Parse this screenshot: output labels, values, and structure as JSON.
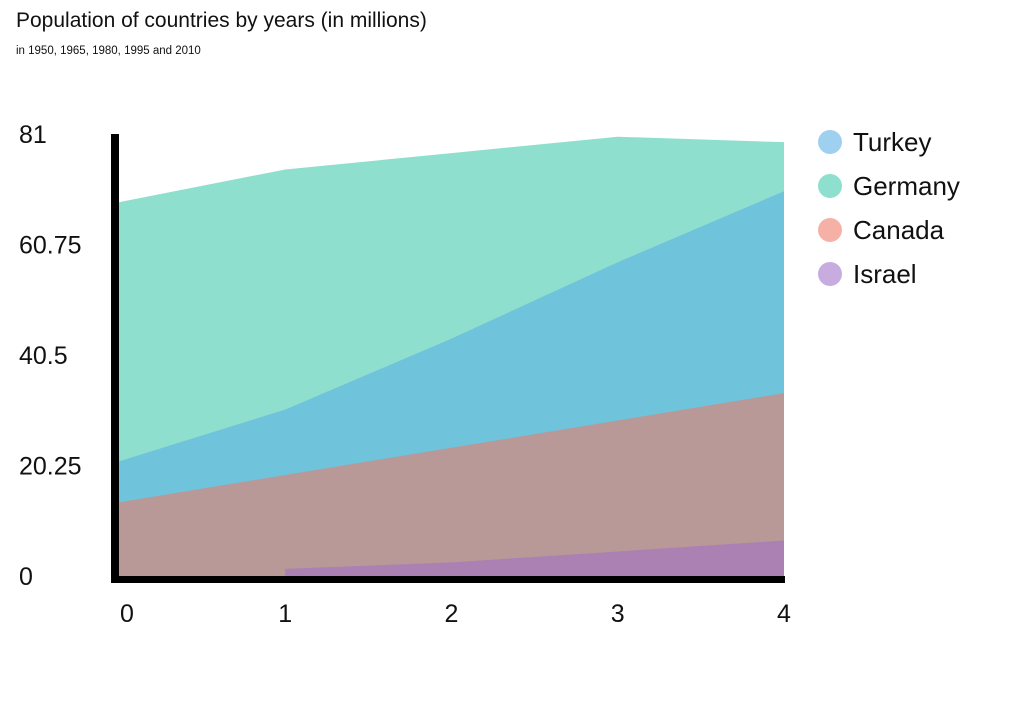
{
  "chart_data": {
    "type": "area",
    "title": "Population of countries by years (in millions)",
    "subtitle": "in 1950, 1965, 1980, 1995 and 2010",
    "x": [
      0,
      1,
      2,
      3,
      4
    ],
    "ylim": [
      0,
      81
    ],
    "yticks": [
      "0",
      "20.25",
      "40.5",
      "60.75",
      "81"
    ],
    "xticks": [
      "0",
      "1",
      "2",
      "3",
      "4"
    ],
    "legend_position": "right",
    "series": [
      {
        "name": "Turkey",
        "color": "#5aaee6",
        "values": [
          21,
          30.5,
          43.5,
          57.5,
          70.5
        ]
      },
      {
        "name": "Germany",
        "color": "#3cc8aa",
        "values": [
          68.5,
          74.5,
          77.5,
          80.5,
          79.5
        ]
      },
      {
        "name": "Canada",
        "color": "#f07868",
        "values": [
          13.5,
          18.5,
          23.5,
          28.5,
          33.5
        ]
      },
      {
        "name": "Israel",
        "color": "#a070c8",
        "values": [
          null,
          1.3,
          2.5,
          4.5,
          6.5
        ]
      }
    ]
  }
}
